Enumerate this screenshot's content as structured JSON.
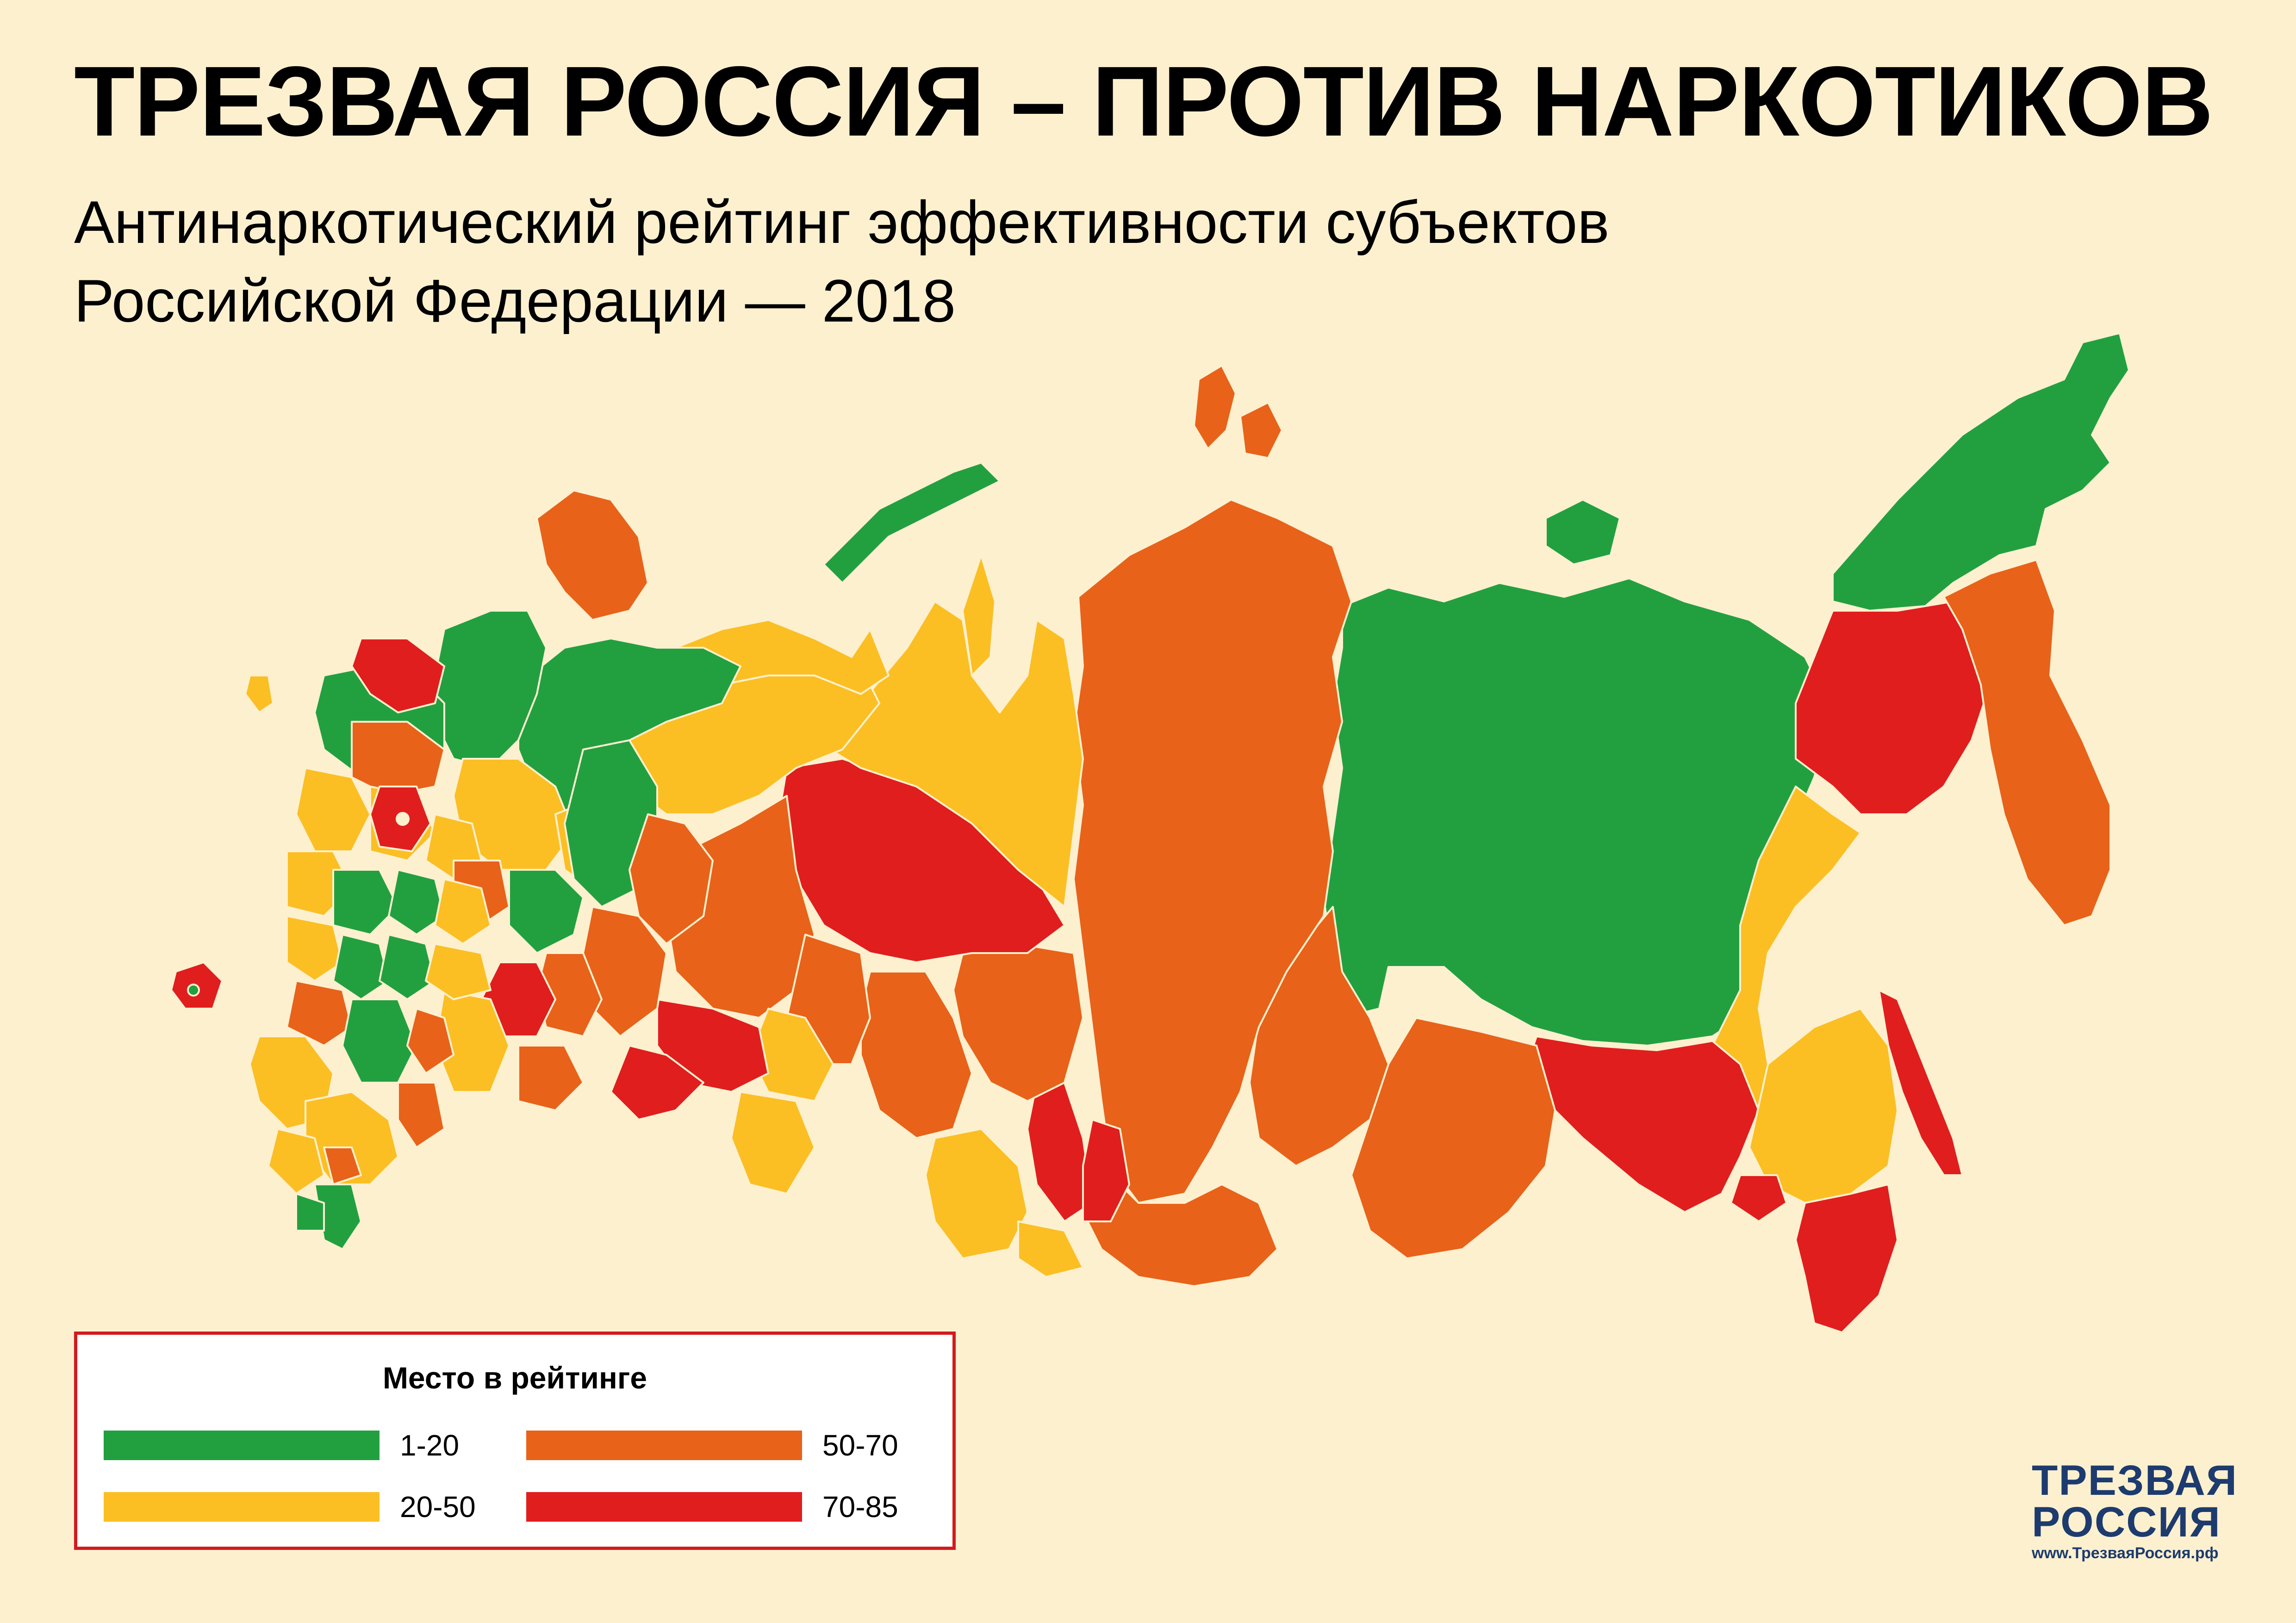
{
  "header": {
    "title": "ТРЕЗВАЯ РОССИЯ – ПРОТИВ НАРКОТИКОВ",
    "subtitle_line1": "Антинаркотический рейтинг эффективности субъектов",
    "subtitle_line2": "Российской Федерации — 2018"
  },
  "legend": {
    "title": "Место в рейтинге",
    "items": [
      {
        "label": "1-20",
        "color": "#22a040"
      },
      {
        "label": "20-50",
        "color": "#fbbf24"
      },
      {
        "label": "50-70",
        "color": "#e8621a"
      },
      {
        "label": "70-85",
        "color": "#e01e1e"
      }
    ]
  },
  "colors": {
    "background": "#fdf0cf",
    "green": "#22a040",
    "yellow": "#fbbf24",
    "orange": "#e8621a",
    "red": "#e01e1e",
    "legend_border": "#d21a1e",
    "brand": "#1d3b6e"
  },
  "brand": {
    "line1": "ТРЕЗВАЯ",
    "line2": "РОССИЯ",
    "url": "www.ТрезваяРоссия.рф"
  }
}
